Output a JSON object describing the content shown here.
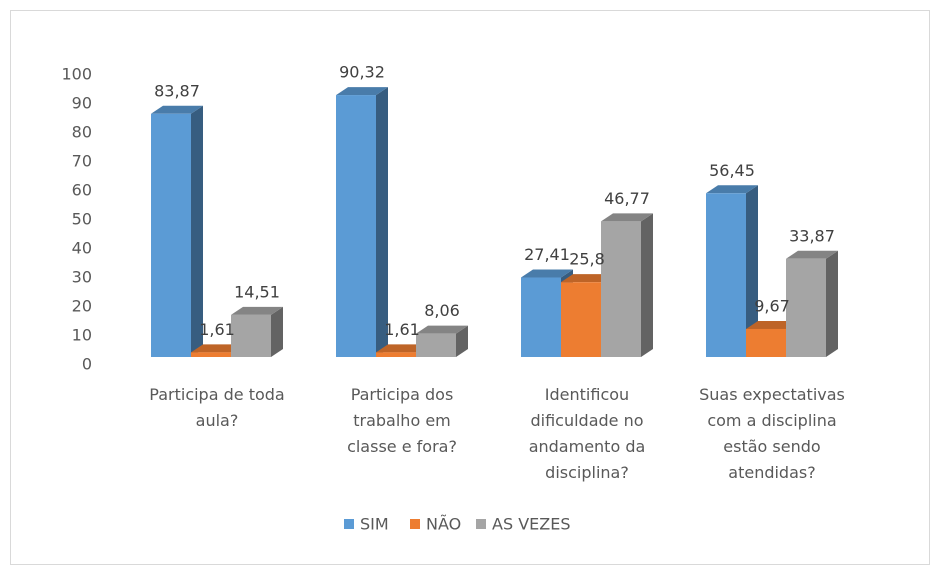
{
  "chart_data": {
    "type": "bar3d",
    "categories": [
      "Participa de toda\naula?",
      "Participa dos\ntrabalho em\nclasse e fora?",
      "Identificou\ndificuldade no\nandamento da\ndisciplina?",
      "Suas expectativas\ncom a disciplina\nestão sendo\natendidas?"
    ],
    "series": [
      {
        "name": "SIM",
        "color": "#5b9bd5",
        "values": [
          83.87,
          90.32,
          27.41,
          56.45
        ],
        "value_labels": [
          "83,87",
          "90,32",
          "27,41",
          "56,45"
        ]
      },
      {
        "name": "NÃO",
        "color": "#ed7d31",
        "values": [
          1.61,
          1.61,
          25.8,
          9.67
        ],
        "value_labels": [
          "1,61",
          "1,61",
          "25,8",
          "9,67"
        ]
      },
      {
        "name": "AS VEZES",
        "color": "#a5a5a5",
        "values": [
          14.51,
          8.06,
          46.77,
          33.87
        ],
        "value_labels": [
          "14,51",
          "8,06",
          "46,77",
          "33,87"
        ]
      }
    ],
    "ylim": [
      0,
      100
    ],
    "yticks": [
      0,
      10,
      20,
      30,
      40,
      50,
      60,
      70,
      80,
      90,
      100
    ],
    "grid": false,
    "legend": "bottom"
  }
}
